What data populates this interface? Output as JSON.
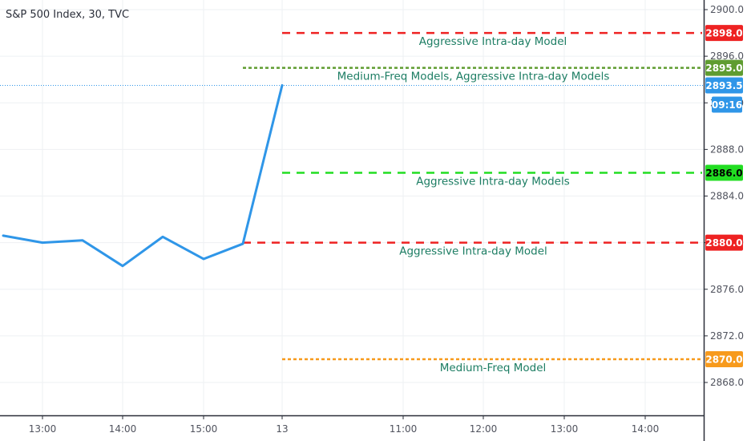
{
  "header": {
    "title": "S&P 500 Index, 30, TVC"
  },
  "chart_data": {
    "type": "line",
    "title": "S&P 500 Index, 30, TVC",
    "ylim": [
      2865.5,
      2901.5
    ],
    "y_ticks": [
      2900.0,
      2896.0,
      2892.0,
      2888.0,
      2884.0,
      2880.0,
      2876.0,
      2872.0,
      2868.0
    ],
    "y_tick_labels": [
      "2900.0",
      "2896.0",
      "2892.0",
      "2888.0",
      "2884.0",
      "2880.0",
      "2876.0",
      "2872.0",
      "2868.0"
    ],
    "x_ticks": [
      "13:00",
      "14:00",
      "15:00",
      "13",
      "11:00",
      "12:00",
      "13:00",
      "14:00"
    ],
    "grid": true,
    "series": [
      {
        "color": "#2f96e8",
        "x": [
          "12:30",
          "13:00",
          "13:30",
          "14:00",
          "14:30",
          "15:00",
          "15:30",
          "09:30"
        ],
        "values": [
          2880.6,
          2880.0,
          2880.2,
          2878.0,
          2880.5,
          2878.6,
          2879.9,
          2893.5
        ]
      }
    ],
    "levels": [
      {
        "value": 2898.0,
        "label": "2898.0",
        "annotation": "Aggressive Intra-day Model",
        "color": "#ee2222",
        "badge_text_color": "#ffffff",
        "style": "dashed",
        "start": "13"
      },
      {
        "value": 2895.0,
        "label": "2895.0",
        "annotation": "Medium-Freq Models, Aggressive Intra-day Models",
        "color": "#5f9c30",
        "badge_text_color": "#ffffff",
        "style": "dotted",
        "start": "15:30"
      },
      {
        "value": 2886.0,
        "label": "2886.0",
        "annotation": "Aggressive Intra-day Models",
        "color": "#22dd22",
        "badge_text_color": "#000000",
        "style": "dashed",
        "start": "13"
      },
      {
        "value": 2880.0,
        "label": "2880.0",
        "annotation": "Aggressive Intra-day Model",
        "color": "#ee2222",
        "badge_text_color": "#ffffff",
        "style": "dashed",
        "start": "15:30"
      },
      {
        "value": 2870.0,
        "label": "2870.0",
        "annotation": "Medium-Freq Model",
        "color": "#f79a1c",
        "badge_text_color": "#ffffff",
        "style": "dotted",
        "start": "13"
      }
    ],
    "last_price": {
      "value": 2893.5,
      "label": "2893.5",
      "color": "#2f96e8"
    },
    "countdown": {
      "label": "09:16",
      "color": "#2f96e8"
    }
  }
}
